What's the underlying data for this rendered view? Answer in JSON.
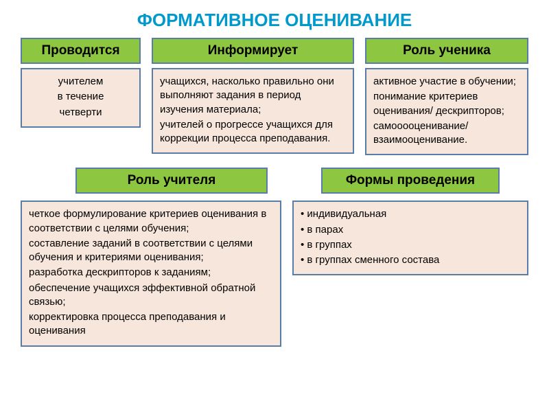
{
  "title": "ФОРМАТИВНОЕ ОЦЕНИВАНИЕ",
  "colors": {
    "title": "#0099cc",
    "header_bg": "#8dc641",
    "content_bg": "#f7e6db",
    "border": "#5a7da8",
    "text": "#000000",
    "page_bg": "#ffffff"
  },
  "top": {
    "c1": {
      "header": "Проводится",
      "line1": "учителем",
      "line2": "в течение",
      "line3": "четверти"
    },
    "c2": {
      "header": "Информирует",
      "p1": "учащихся, насколько правильно они выполняют задания в период изучения материала;",
      "p2": "учителей о прогрессе учащихся для коррекции процесса преподавания."
    },
    "c3": {
      "header": "Роль ученика",
      "p1": "активное участие в обучении;",
      "p2": "понимание критериев оценивания/ дескрипторов;",
      "p3": "самооооценивание/ взаимооценивание."
    }
  },
  "bottom": {
    "teacher": {
      "header": "Роль учителя",
      "p1": "четкое формулирование критериев оценивания в соответствии с целями обучения;",
      "p2": "составление заданий в соответствии с целями обучения и критериями оценивания;",
      "p3": "разработка дескрипторов к заданиям;",
      "p4": "обеспечение учащихся эффективной обратной связью;",
      "p5": " корректировка процесса преподавания и оценивания"
    },
    "forms": {
      "header": "Формы проведения",
      "i1": "• индивидуальная",
      "i2": "• в парах",
      "i3": "• в группах",
      "i4": "• в группах сменного состава"
    }
  }
}
